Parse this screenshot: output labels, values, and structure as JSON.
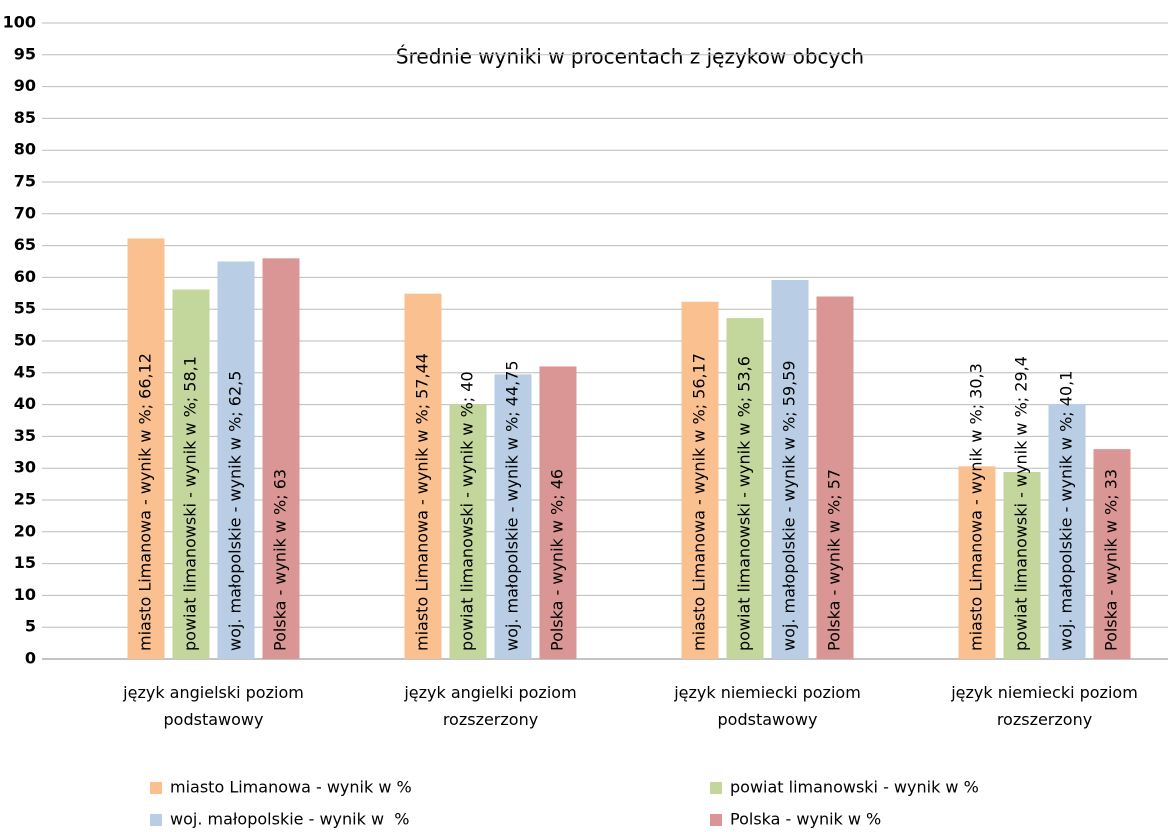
{
  "chart_data": {
    "type": "bar",
    "title": "Średnie wyniki w procentach z językow obcych",
    "categories": [
      "język angielski poziom podstawowy",
      "język angielki poziom rozszerzony",
      "język niemiecki poziom podstawowy",
      "język niemiecki poziom rozszerzony"
    ],
    "series": [
      {
        "name": "miasto Limanowa - wynik w %",
        "color": "#fac090",
        "values": [
          66.12,
          57.44,
          56.17,
          30.3
        ],
        "value_labels": [
          "miasto Limanowa - wynik w %; 66,12",
          "miasto Limanowa - wynik w %; 57,44",
          "miasto Limanowa - wynik w %; 56,17",
          "miasto Limanowa - wynik w %; 30,3"
        ]
      },
      {
        "name": "powiat limanowski - wynik w %",
        "color": "#c3d69b",
        "values": [
          58.1,
          40,
          53.6,
          29.4
        ],
        "value_labels": [
          "powiat limanowski - wynik w %; 58,1",
          "powiat limanowski - wynik w %; 40",
          "powiat limanowski - wynik w %; 53,6",
          "powiat limanowski - wynik w %; 29,4"
        ]
      },
      {
        "name": "woj. małopolskie - wynik w  %",
        "color": "#b9cde5",
        "values": [
          62.5,
          44.75,
          59.59,
          40.1
        ],
        "value_labels": [
          "woj. małopolskie - wynik w  %; 62,5",
          "woj. małopolskie - wynik w  %; 44,75",
          "woj. małopolskie - wynik w  %; 59,59",
          "woj. małopolskie - wynik w  %; 40,1"
        ]
      },
      {
        "name": "Polska - wynik w %",
        "color": "#d99694",
        "values": [
          63,
          46,
          57,
          33
        ],
        "value_labels": [
          "Polska - wynik w %; 63",
          "Polska - wynik w %; 46",
          "Polska - wynik w %; 57",
          "Polska - wynik w %; 33"
        ]
      }
    ],
    "ylim": [
      0,
      100
    ],
    "yticks": [
      0,
      5,
      10,
      15,
      20,
      25,
      30,
      35,
      40,
      45,
      50,
      55,
      60,
      65,
      70,
      75,
      80,
      85,
      90,
      95,
      100
    ],
    "grid": true
  }
}
